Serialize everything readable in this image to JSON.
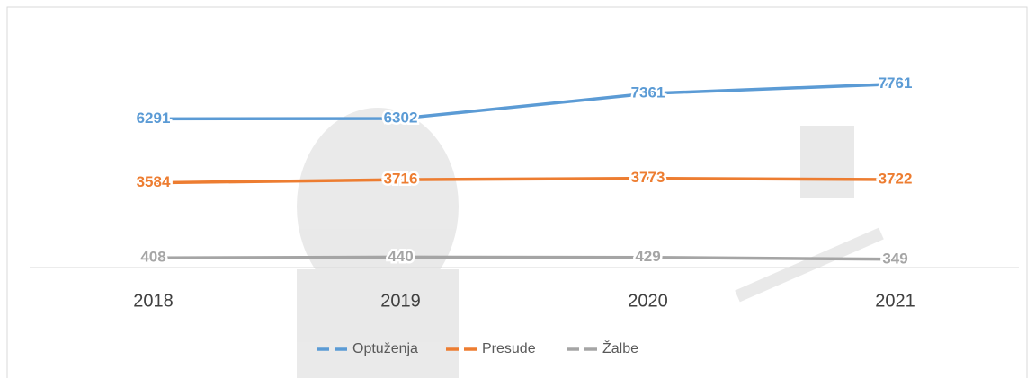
{
  "chart_data": {
    "type": "line",
    "categories": [
      "2018",
      "2019",
      "2020",
      "2021"
    ],
    "series": [
      {
        "name": "Optuženja",
        "color": "#5b9bd5",
        "values": [
          6291,
          6302,
          7361,
          7761
        ]
      },
      {
        "name": "Presude",
        "color": "#ed7d31",
        "values": [
          3584,
          3716,
          3773,
          3722
        ]
      },
      {
        "name": "Žalbe",
        "color": "#a5a5a5",
        "values": [
          408,
          440,
          429,
          349
        ]
      }
    ],
    "ylim": [
      0,
      9000
    ]
  }
}
